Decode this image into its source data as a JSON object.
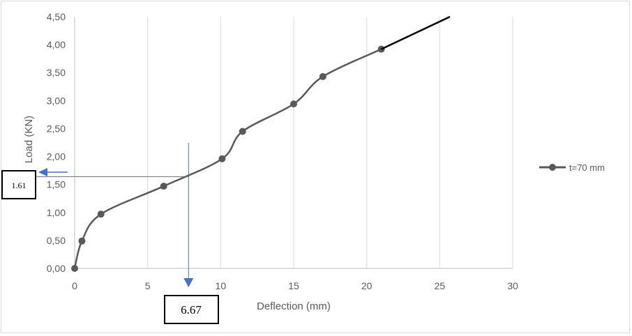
{
  "chart_data": {
    "type": "line",
    "xlabel": "Deflection (mm)",
    "ylabel": "Load (KN)",
    "xlim": [
      0,
      30
    ],
    "ylim": [
      0,
      4.5
    ],
    "x_ticks": [
      "0",
      "5",
      "10",
      "15",
      "20",
      "25",
      "30"
    ],
    "y_ticks": [
      "0,00",
      "0,50",
      "1,00",
      "1,50",
      "2,00",
      "2,50",
      "3,00",
      "3,50",
      "4,00",
      "4,50"
    ],
    "grid": "vertical",
    "legend_position": "right",
    "series": [
      {
        "name": "t=70 mm",
        "color": "#595959",
        "x": [
          0,
          0.5,
          1.8,
          6.1,
          10.1,
          11.5,
          15.0,
          17.0,
          21.0
        ],
        "y": [
          0,
          0.49,
          0.97,
          1.47,
          1.96,
          2.45,
          2.94,
          3.43,
          3.92
        ]
      }
    ],
    "extension_line": {
      "x": [
        21.0,
        25.7
      ],
      "y": [
        3.92,
        4.5
      ],
      "color": "#000000"
    },
    "annotations": {
      "x_value": 7.8,
      "y_value": 1.64,
      "x_label": "6.67",
      "y_label": "1.61",
      "color": "#4472c4"
    }
  }
}
